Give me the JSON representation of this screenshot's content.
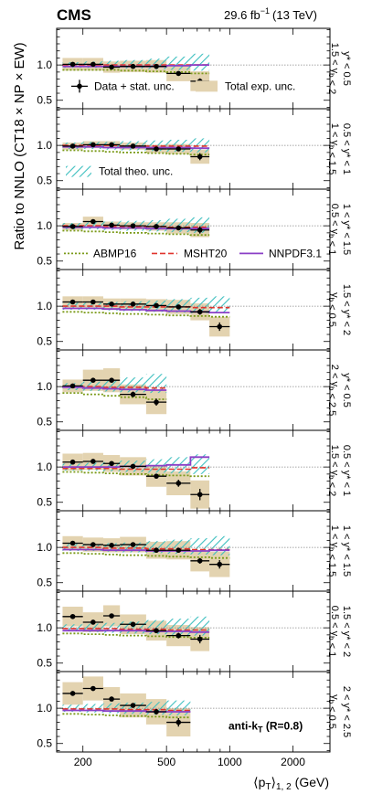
{
  "header": {
    "experiment": "CMS",
    "lumi_value": "29.6 fb",
    "lumi_exp": "−1",
    "energy": "(13 TeV)"
  },
  "axes": {
    "ylabel": "Ratio to NNLO (CT18 × NP × EW)",
    "xlabel_p": "⟨p",
    "xlabel_t": "T",
    "xlabel_rest": "⟩",
    "xlabel_sub": "1, 2",
    "xlabel_unit": "(GeV)"
  },
  "legend": {
    "data": "Data + stat. unc.",
    "exp": "Total exp. unc.",
    "theo": "Total theo. unc.",
    "abmp": "ABMP16",
    "msht": "MSHT20",
    "nnpdf": "NNPDF3.1"
  },
  "annotation": "anti-k",
  "annotation_sub": "T",
  "annotation_rest": " (R=0.8)",
  "colors": {
    "data": "#000000",
    "exp_band": "#e3d3b0",
    "theo_hatch": "#3ebfbf",
    "abmp": "#7a9a18",
    "msht": "#e0342d",
    "nnpdf": "#8a3fc6",
    "ref_line": "#8a8a8a"
  },
  "chart_data": {
    "type": "ratio_panels",
    "x_scale": "log",
    "xlim": [
      150,
      3000
    ],
    "ylim": [
      0.38,
      1.52
    ],
    "x_tick_labels": [
      {
        "value": 200,
        "label": "200"
      },
      {
        "value": 500,
        "label": "500"
      },
      {
        "value": 1000,
        "label": "1000"
      },
      {
        "value": 2000,
        "label": "2000"
      }
    ],
    "y_tick_labels": [
      {
        "value": 0.5,
        "label": "0.5"
      },
      {
        "value": 1.0,
        "label": "1.0"
      }
    ],
    "bin_edges": [
      160,
      200,
      250,
      300,
      400,
      500,
      650,
      800,
      1000
    ],
    "panels": [
      {
        "label_top": "y* < 0.5",
        "label_bottom": "1.5 < y_b < 2",
        "data": [
          1.01,
          1.01,
          0.97,
          0.98,
          0.98,
          0.88,
          0.77
        ],
        "data_stat": [
          0.02,
          0.02,
          0.02,
          0.02,
          0.02,
          0.03,
          0.04
        ],
        "exp_unc": [
          0.09,
          0.09,
          0.08,
          0.08,
          0.09,
          0.11,
          0.14
        ],
        "theo_lo": [
          0.96,
          0.96,
          0.96,
          0.95,
          0.94,
          0.93,
          0.92
        ],
        "theo_hi": [
          1.04,
          1.05,
          1.06,
          1.07,
          1.09,
          1.12,
          1.16
        ],
        "abmp": [
          0.93,
          0.93,
          0.93,
          0.92,
          0.91,
          0.9,
          0.88
        ],
        "msht": [
          1.0,
          1.0,
          1.0,
          1.0,
          1.0,
          1.0,
          1.0
        ],
        "nnpdf": [
          0.98,
          0.98,
          0.98,
          0.98,
          0.98,
          0.99,
          1.0
        ]
      },
      {
        "label_top": "0.5 < y* < 1",
        "label_bottom": "1 < y_b < 1.5",
        "data": [
          0.99,
          1.01,
          1.01,
          0.99,
          0.95,
          0.95,
          0.84
        ],
        "data_stat": [
          0.02,
          0.02,
          0.02,
          0.02,
          0.02,
          0.03,
          0.05
        ],
        "exp_unc": [
          0.05,
          0.05,
          0.05,
          0.05,
          0.06,
          0.07,
          0.1
        ],
        "theo_lo": [
          0.95,
          0.95,
          0.94,
          0.93,
          0.92,
          0.91,
          0.9
        ],
        "theo_hi": [
          1.04,
          1.05,
          1.05,
          1.06,
          1.07,
          1.08,
          1.1
        ],
        "abmp": [
          0.93,
          0.92,
          0.91,
          0.9,
          0.89,
          0.88,
          0.87
        ],
        "msht": [
          1.0,
          1.0,
          1.0,
          0.99,
          0.99,
          0.99,
          0.99
        ],
        "nnpdf": [
          0.98,
          0.98,
          0.97,
          0.97,
          0.97,
          0.97,
          0.96
        ]
      },
      {
        "label_top": "1 < y* < 1.5",
        "label_bottom": "0.5 < y_b < 1",
        "data": [
          0.99,
          1.06,
          1.01,
          1.0,
          0.99,
          0.97,
          0.94
        ],
        "data_stat": [
          0.02,
          0.02,
          0.02,
          0.02,
          0.02,
          0.03,
          0.05
        ],
        "exp_unc": [
          0.05,
          0.07,
          0.05,
          0.05,
          0.06,
          0.08,
          0.1
        ],
        "theo_lo": [
          0.95,
          0.95,
          0.94,
          0.93,
          0.92,
          0.91,
          0.9
        ],
        "theo_hi": [
          1.04,
          1.05,
          1.06,
          1.07,
          1.08,
          1.1,
          1.12
        ],
        "abmp": [
          0.93,
          0.92,
          0.91,
          0.9,
          0.89,
          0.88,
          0.87
        ],
        "msht": [
          1.0,
          1.0,
          0.99,
          0.99,
          0.99,
          0.98,
          0.98
        ],
        "nnpdf": [
          0.98,
          0.98,
          0.97,
          0.97,
          0.96,
          0.96,
          0.96
        ]
      },
      {
        "label_top": "1.5 < y* < 2",
        "label_bottom": "y_b < 0.5",
        "data": [
          1.06,
          1.06,
          1.03,
          1.03,
          1.01,
          0.99,
          0.92,
          0.71
        ],
        "data_stat": [
          0.02,
          0.02,
          0.02,
          0.02,
          0.02,
          0.03,
          0.04,
          0.06
        ],
        "exp_unc": [
          0.08,
          0.08,
          0.08,
          0.08,
          0.09,
          0.1,
          0.12,
          0.14
        ],
        "theo_lo": [
          0.95,
          0.95,
          0.94,
          0.93,
          0.92,
          0.91,
          0.9,
          0.9
        ],
        "theo_hi": [
          1.05,
          1.05,
          1.06,
          1.07,
          1.08,
          1.1,
          1.12,
          1.14
        ],
        "abmp": [
          0.92,
          0.91,
          0.9,
          0.89,
          0.88,
          0.87,
          0.86,
          0.85
        ],
        "msht": [
          1.0,
          1.0,
          1.0,
          0.99,
          0.99,
          0.99,
          0.98,
          0.98
        ],
        "nnpdf": [
          0.97,
          0.97,
          0.96,
          0.95,
          0.94,
          0.93,
          0.92,
          0.91
        ]
      },
      {
        "label_top": "y* < 0.5",
        "label_bottom": "2 < y_b < 2.5",
        "data": [
          1.01,
          1.09,
          1.09,
          0.89,
          0.78
        ],
        "data_stat": [
          0.02,
          0.02,
          0.03,
          0.04,
          0.05
        ],
        "exp_unc": [
          0.09,
          0.15,
          0.17,
          0.14,
          0.17
        ],
        "theo_lo": [
          0.95,
          0.94,
          0.93,
          0.92,
          0.91
        ],
        "theo_hi": [
          1.05,
          1.07,
          1.09,
          1.13,
          1.18
        ],
        "abmp": [
          0.91,
          0.89,
          0.87,
          0.85,
          0.82
        ],
        "msht": [
          1.0,
          1.0,
          0.99,
          0.99,
          0.98
        ],
        "nnpdf": [
          0.99,
          0.98,
          0.97,
          0.96,
          0.95
        ]
      },
      {
        "label_top": "0.5 < y* < 1",
        "label_bottom": "1.5 < y_b < 2",
        "data": [
          1.07,
          1.08,
          1.05,
          1.01,
          0.87,
          0.77,
          0.61
        ],
        "data_stat": [
          0.02,
          0.02,
          0.02,
          0.02,
          0.03,
          0.05,
          0.08
        ],
        "exp_unc": [
          0.12,
          0.12,
          0.12,
          0.13,
          0.15,
          0.17,
          0.2
        ],
        "theo_lo": [
          0.95,
          0.95,
          0.94,
          0.93,
          0.92,
          0.91,
          0.9
        ],
        "theo_hi": [
          1.05,
          1.06,
          1.07,
          1.09,
          1.11,
          1.14,
          1.18
        ],
        "abmp": [
          0.93,
          0.92,
          0.91,
          0.9,
          0.89,
          0.88,
          0.87
        ],
        "msht": [
          0.98,
          0.98,
          0.98,
          0.97,
          0.97,
          0.97,
          0.99
        ],
        "nnpdf": [
          1.0,
          1.0,
          1.0,
          1.01,
          1.02,
          1.03,
          1.14
        ]
      },
      {
        "label_top": "1 < y* < 1.5",
        "label_bottom": "1 < y_b < 1.5",
        "data": [
          1.06,
          1.04,
          1.03,
          1.04,
          0.96,
          0.96,
          0.81,
          0.76
        ],
        "data_stat": [
          0.02,
          0.02,
          0.02,
          0.02,
          0.02,
          0.03,
          0.04,
          0.06
        ],
        "exp_unc": [
          0.1,
          0.1,
          0.1,
          0.11,
          0.12,
          0.13,
          0.15,
          0.18
        ],
        "theo_lo": [
          0.95,
          0.95,
          0.94,
          0.93,
          0.92,
          0.91,
          0.9,
          0.89
        ],
        "theo_hi": [
          1.05,
          1.05,
          1.06,
          1.07,
          1.09,
          1.11,
          1.13,
          1.16
        ],
        "abmp": [
          0.92,
          0.91,
          0.9,
          0.89,
          0.88,
          0.87,
          0.86,
          0.85
        ],
        "msht": [
          1.0,
          1.0,
          0.99,
          0.99,
          0.98,
          0.98,
          0.97,
          0.97
        ],
        "nnpdf": [
          0.97,
          0.97,
          0.96,
          0.96,
          0.95,
          0.95,
          0.95,
          0.96
        ]
      },
      {
        "label_top": "1.5 < y* < 2",
        "label_bottom": "0.5 < y_b < 1",
        "data": [
          1.16,
          1.08,
          1.17,
          1.05,
          0.96,
          0.89,
          0.84
        ],
        "data_stat": [
          0.02,
          0.02,
          0.02,
          0.03,
          0.03,
          0.04,
          0.06
        ],
        "exp_unc": [
          0.14,
          0.14,
          0.15,
          0.14,
          0.14,
          0.15,
          0.17
        ],
        "theo_lo": [
          0.95,
          0.94,
          0.93,
          0.92,
          0.91,
          0.9,
          0.89
        ],
        "theo_hi": [
          1.05,
          1.06,
          1.07,
          1.09,
          1.11,
          1.13,
          1.16
        ],
        "abmp": [
          0.92,
          0.91,
          0.9,
          0.89,
          0.88,
          0.87,
          0.86
        ],
        "msht": [
          0.99,
          0.99,
          0.99,
          0.98,
          0.98,
          0.97,
          0.97
        ],
        "nnpdf": [
          0.96,
          0.96,
          0.96,
          0.96,
          0.95,
          0.95,
          0.94
        ]
      },
      {
        "label_top": "2 < y* < 2.5",
        "label_bottom": "y_b < 0.5",
        "data": [
          1.21,
          1.28,
          1.13,
          1.04,
          0.95,
          0.8
        ],
        "data_stat": [
          0.03,
          0.03,
          0.03,
          0.03,
          0.04,
          0.06
        ],
        "exp_unc": [
          0.16,
          0.17,
          0.17,
          0.17,
          0.18,
          0.2
        ],
        "theo_lo": [
          0.95,
          0.94,
          0.93,
          0.92,
          0.91,
          0.9
        ],
        "theo_hi": [
          1.05,
          1.06,
          1.07,
          1.08,
          1.09,
          1.11
        ],
        "abmp": [
          0.92,
          0.91,
          0.9,
          0.89,
          0.88,
          0.87
        ],
        "msht": [
          0.99,
          0.99,
          0.99,
          0.98,
          0.98,
          0.97
        ],
        "nnpdf": [
          0.97,
          0.97,
          0.96,
          0.96,
          0.95,
          0.95
        ]
      }
    ]
  }
}
